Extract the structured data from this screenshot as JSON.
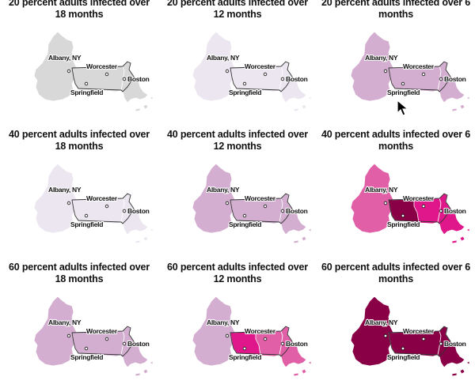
{
  "panels": [
    {
      "title": "20 percent adults infected over 18 months",
      "base": "#d8d8d8",
      "mid": null,
      "center": null,
      "east": "#d8d8d8"
    },
    {
      "title": "20 percent adults infected over 12 months",
      "base": "#ebe6f0",
      "mid": null,
      "center": null,
      "east": "#ebe6f0"
    },
    {
      "title": "20 percent adults infected over 6 months",
      "base": "#d3aed0",
      "mid": null,
      "center": null,
      "east": "#d3aed0"
    },
    {
      "title": "40 percent adults infected over 18 months",
      "base": "#ebe6f0",
      "mid": null,
      "center": null,
      "east": "#ebe6f0"
    },
    {
      "title": "40 percent adults infected over 12 months",
      "base": "#d3aed0",
      "mid": null,
      "center": null,
      "east": "#d3aed0"
    },
    {
      "title": "40 percent adults infected over 6 months",
      "base": "#e05fa6",
      "mid": "#e0178a",
      "center": "#8a0046",
      "east": "#e0178a"
    },
    {
      "title": "60 percent adults infected over 18 months",
      "base": "#d3aed0",
      "mid": null,
      "center": null,
      "east": "#d3aed0"
    },
    {
      "title": "60 percent adults infected over 12 months",
      "base": "#d3aed0",
      "mid": "#e05fa6",
      "center": "#e0178a",
      "east": "#e05fa6"
    },
    {
      "title": "60 percent adults infected over 6 months",
      "base": "#8a0046",
      "mid": null,
      "center": null,
      "east": "#8a0046"
    }
  ],
  "cities": {
    "albany": "Albany, NY",
    "worcester": "Worcester",
    "boston": "Boston",
    "springfield": "Springfield"
  },
  "icons": {
    "cursor": "mouse-pointer-icon"
  }
}
